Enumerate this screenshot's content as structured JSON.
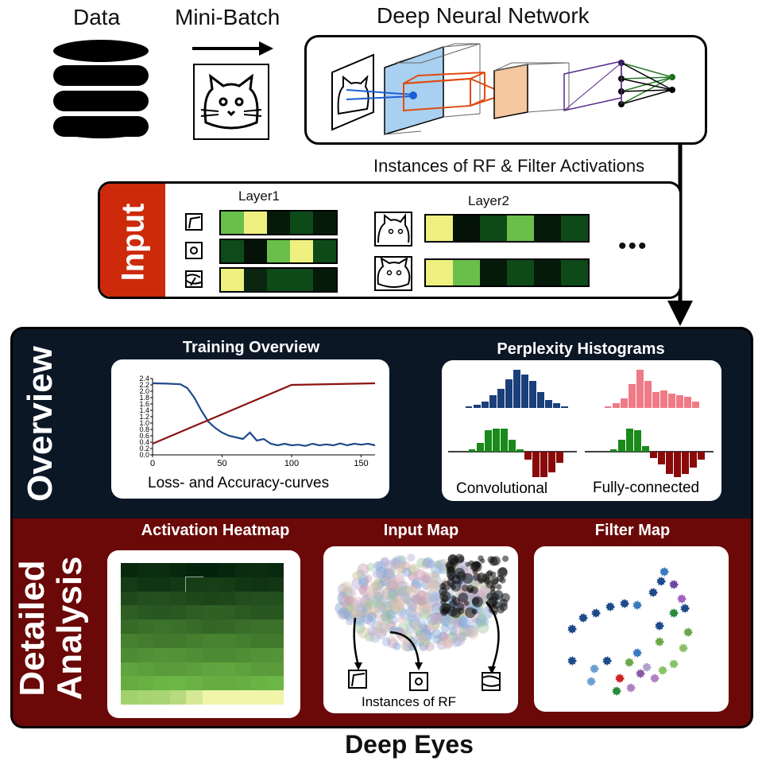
{
  "top": {
    "data_label": "Data",
    "minibatch_label": "Mini-Batch",
    "dnn_label": "Deep Neural Network",
    "instances_label": "Instances of RF & Filter Activations"
  },
  "input": {
    "title": "Input",
    "layer1_label": "Layer1",
    "layer2_label": "Layer2",
    "ellipsis": "•••",
    "layer1_rows": [
      [
        "#6abf4b",
        "#eef07f",
        "#071a0a",
        "#0d4a18",
        "#061a0a"
      ],
      [
        "#0e4b1a",
        "#041208",
        "#6abf4b",
        "#eef07f",
        "#0d4a18"
      ],
      [
        "#eef07f",
        "#0a2510",
        "#0d4a18",
        "#0d4a18",
        "#061a0a"
      ]
    ],
    "layer2_rows": [
      [
        "#eef07f",
        "#041208",
        "#0d4a18",
        "#6abf4b",
        "#061a0a",
        "#0d4a18"
      ],
      [
        "#eef07f",
        "#6abf4b",
        "#061a0a",
        "#0d4a18",
        "#061a0a",
        "#0d4a18"
      ]
    ]
  },
  "overview": {
    "side_label": "Overview",
    "training_title": "Training Overview",
    "training_caption": "Loss- and Accuracy-curves",
    "perplexity_title": "Perplexity Histograms",
    "conv_label": "Convolutional",
    "fc_label": "Fully-connected"
  },
  "detailed": {
    "side_label_1": "Detailed",
    "side_label_2": "Analysis",
    "heatmap_title": "Activation Heatmap",
    "inputmap_title": "Input Map",
    "filtermap_title": "Filter Map",
    "instances_rf_label": "Instances of RF"
  },
  "footer_title": "Deep Eyes",
  "colors": {
    "overview_bg": "#0c1726",
    "detailed_bg": "#6b0808",
    "input_red": "#cc2a0a",
    "loss_color": "#1f4a8a",
    "accuracy_color": "#8b1212"
  },
  "chart_data": {
    "type": "line",
    "x_ticks": [
      "0",
      "50",
      "100",
      "150"
    ],
    "y_ticks": [
      "0.0",
      "0.2",
      "0.4",
      "0.6",
      "0.8",
      "1.0",
      "1.2",
      "1.4",
      "1.6",
      "1.8",
      "2.0",
      "2.2",
      "2.4"
    ],
    "xlim": [
      0,
      160
    ],
    "ylim": [
      0,
      2.4
    ],
    "series": [
      {
        "values_x": [
          0,
          10,
          20,
          25,
          30,
          35,
          40,
          45,
          50,
          55,
          60,
          65,
          70,
          75,
          80,
          85,
          90,
          95,
          100,
          105,
          110,
          115,
          120,
          125,
          130,
          135,
          140,
          145,
          150,
          155,
          160
        ],
        "values_y": [
          2.25,
          2.24,
          2.22,
          2.1,
          1.8,
          1.4,
          1.05,
          0.85,
          0.7,
          0.6,
          0.55,
          0.5,
          0.7,
          0.45,
          0.5,
          0.35,
          0.3,
          0.35,
          0.3,
          0.32,
          0.28,
          0.35,
          0.3,
          0.33,
          0.3,
          0.36,
          0.3,
          0.35,
          0.32,
          0.35,
          0.3
        ]
      },
      {
        "values_x": [
          0,
          100,
          160
        ],
        "values_y": [
          0.35,
          2.2,
          2.25
        ]
      }
    ]
  }
}
